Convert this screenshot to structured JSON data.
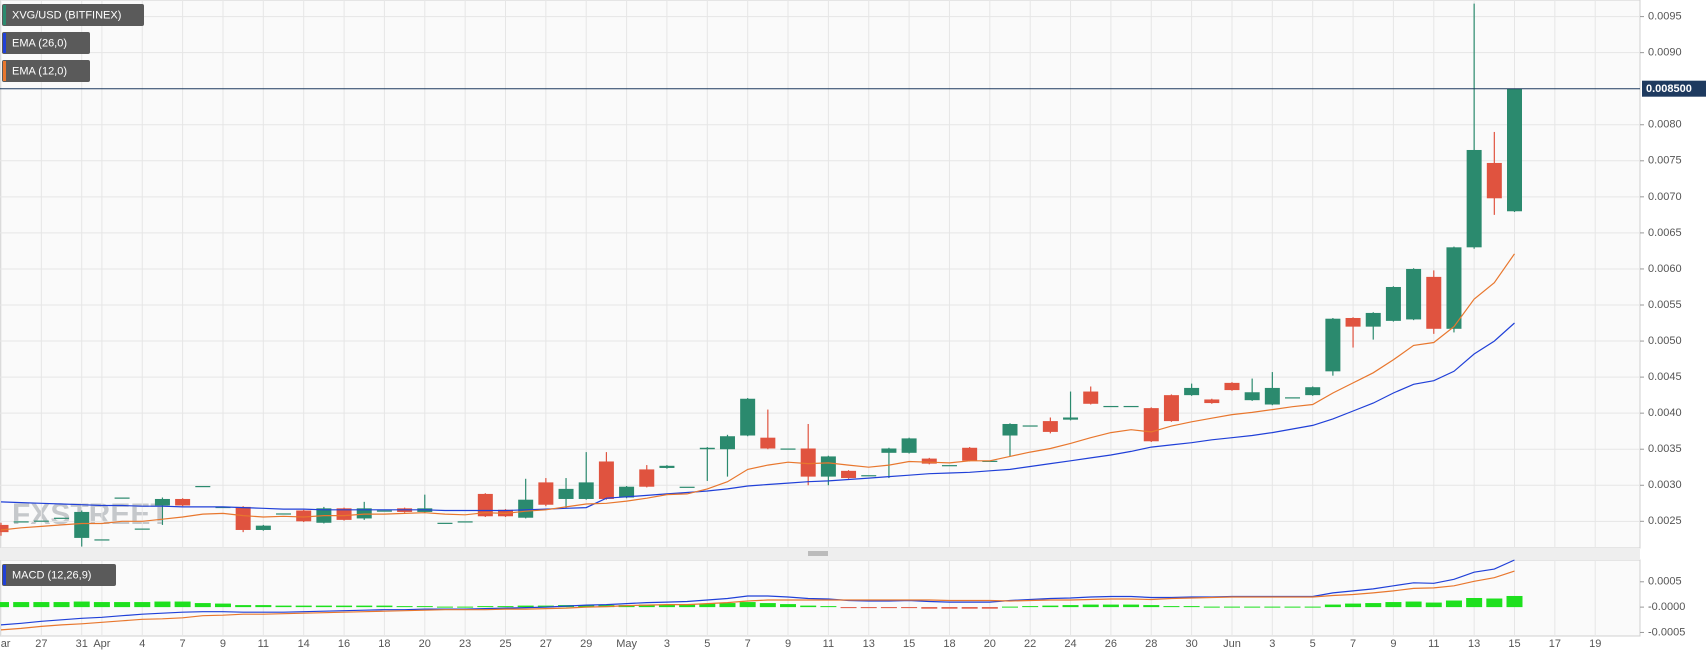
{
  "watermark": "FXSTREET",
  "chart_data": [
    {
      "type": "candlestick",
      "title": "XVG/USD (BITFINEX)",
      "up_color": "#2b8a6e",
      "down_color": "#e0533f",
      "grid": true,
      "categories": [
        "Mar",
        null,
        "27",
        null,
        "31",
        "Apr",
        null,
        "4",
        null,
        "7",
        null,
        "9",
        null,
        "11",
        null,
        "14",
        null,
        "16",
        null,
        "18",
        null,
        "20",
        null,
        "23",
        null,
        "25",
        null,
        "27",
        null,
        "29",
        null,
        "May",
        null,
        "3",
        null,
        "5",
        null,
        "7",
        null,
        "9",
        null,
        "11",
        null,
        "13",
        null,
        "15",
        null,
        "18",
        null,
        "20",
        null,
        "22",
        null,
        "24",
        null,
        "26",
        null,
        "28",
        null,
        "30",
        null,
        "Jun",
        null,
        "3",
        null,
        "5",
        null,
        "7",
        null,
        "9",
        null,
        "11",
        null,
        "13",
        null,
        "15",
        null,
        "17",
        null,
        "19"
      ],
      "open": [
        0.00245,
        0.0025,
        0.00251,
        0.00255,
        0.00227,
        0.00225,
        0.00283,
        0.0024,
        0.00272,
        0.00281,
        0.00299,
        0.0027,
        0.0027,
        0.00238,
        0.00261,
        0.00265,
        0.00248,
        0.00268,
        0.00254,
        0.00265,
        0.00268,
        0.00263,
        0.00248,
        0.0025,
        0.00288,
        0.00266,
        0.00255,
        0.00304,
        0.00281,
        0.00281,
        0.00333,
        0.00283,
        0.00322,
        0.00324,
        0.00298,
        0.0035,
        0.0035,
        0.00369,
        0.00366,
        0.00351,
        0.00351,
        0.00312,
        0.0032,
        0.00314,
        0.00345,
        0.00345,
        0.00337,
        0.00328,
        0.00352,
        0.00334,
        0.00369,
        0.00383,
        0.00389,
        0.00391,
        0.0043,
        0.0041,
        0.0041,
        0.00407,
        0.00425,
        0.00425,
        0.00419,
        0.00442,
        0.00418,
        0.00412,
        0.00422,
        0.00425,
        0.00458,
        0.00532,
        0.0052,
        0.00528,
        0.0053,
        0.00589,
        0.00517,
        0.0063,
        0.00747,
        0.0068,
        null,
        null,
        null,
        null
      ],
      "high": [
        0.00248,
        0.0025,
        0.00251,
        0.00255,
        0.00265,
        0.00225,
        0.00283,
        0.0024,
        0.00283,
        0.00282,
        0.00299,
        0.0027,
        0.00271,
        0.00245,
        0.00261,
        0.00266,
        0.0027,
        0.00269,
        0.00277,
        0.00265,
        0.00269,
        0.00287,
        0.00248,
        0.0025,
        0.00289,
        0.00267,
        0.00309,
        0.0031,
        0.0031,
        0.00346,
        0.00346,
        0.00299,
        0.00328,
        0.00328,
        0.00298,
        0.00353,
        0.0037,
        0.00421,
        0.00405,
        0.00351,
        0.00385,
        0.00341,
        0.00321,
        0.00314,
        0.00352,
        0.00366,
        0.00338,
        0.00328,
        0.00353,
        0.00334,
        0.00386,
        0.00383,
        0.00394,
        0.0043,
        0.00437,
        0.0041,
        0.0041,
        0.00408,
        0.00426,
        0.00441,
        0.0042,
        0.00443,
        0.00448,
        0.00457,
        0.00422,
        0.00437,
        0.00532,
        0.00533,
        0.0054,
        0.00576,
        0.00601,
        0.00598,
        0.00631,
        0.00968,
        0.0079,
        0.0085,
        null,
        null,
        null,
        null
      ],
      "low": [
        0.0023,
        0.0025,
        0.00251,
        0.00255,
        0.00215,
        0.00225,
        0.00283,
        0.0024,
        0.00245,
        0.00271,
        0.00299,
        0.0027,
        0.00235,
        0.00237,
        0.00261,
        0.00249,
        0.00247,
        0.00251,
        0.00252,
        0.00265,
        0.00262,
        0.00262,
        0.00248,
        0.0025,
        0.00256,
        0.00256,
        0.00254,
        0.00271,
        0.00268,
        0.0028,
        0.0028,
        0.00282,
        0.00297,
        0.00323,
        0.00298,
        0.00306,
        0.00312,
        0.00368,
        0.0035,
        0.00351,
        0.003,
        0.003,
        0.00309,
        0.00314,
        0.0031,
        0.00344,
        0.00329,
        0.00328,
        0.00333,
        0.00334,
        0.0034,
        0.00383,
        0.00372,
        0.0039,
        0.00412,
        0.0041,
        0.0041,
        0.0036,
        0.00388,
        0.00424,
        0.00413,
        0.00431,
        0.00417,
        0.00411,
        0.00422,
        0.00424,
        0.00452,
        0.00491,
        0.00502,
        0.00527,
        0.00529,
        0.0051,
        0.00512,
        0.00628,
        0.00675,
        0.00679,
        null,
        null,
        null,
        null
      ],
      "close": [
        0.00235,
        0.0025,
        0.00251,
        0.00255,
        0.00263,
        0.00225,
        0.00283,
        0.0024,
        0.00281,
        0.00272,
        0.00299,
        0.0027,
        0.00238,
        0.00244,
        0.00261,
        0.0025,
        0.00268,
        0.00252,
        0.00268,
        0.00265,
        0.00263,
        0.00268,
        0.00248,
        0.0025,
        0.00257,
        0.00257,
        0.0028,
        0.00273,
        0.00295,
        0.00304,
        0.00281,
        0.00298,
        0.00298,
        0.00327,
        0.00298,
        0.00352,
        0.00368,
        0.0042,
        0.00351,
        0.00351,
        0.00312,
        0.0034,
        0.0031,
        0.00314,
        0.00351,
        0.00365,
        0.0033,
        0.00328,
        0.00334,
        0.00334,
        0.00385,
        0.00383,
        0.00374,
        0.00394,
        0.00413,
        0.0041,
        0.0041,
        0.00361,
        0.00389,
        0.00435,
        0.00414,
        0.00432,
        0.00429,
        0.00435,
        0.00422,
        0.00436,
        0.00531,
        0.0052,
        0.00539,
        0.00575,
        0.006,
        0.00517,
        0.0063,
        0.00765,
        0.00698,
        0.0085,
        null,
        null,
        null,
        null
      ],
      "series": [
        {
          "name": "EMA (26,0)",
          "color": "#2040d8",
          "values": [
            0.00277,
            0.00276,
            0.00275,
            0.00274,
            0.00273,
            0.00272,
            0.00272,
            0.00271,
            0.00271,
            0.0027,
            0.0027,
            0.0027,
            0.00269,
            0.00268,
            0.00267,
            0.00267,
            0.00266,
            0.00266,
            0.00266,
            0.00266,
            0.00266,
            0.00266,
            0.00265,
            0.00265,
            0.00265,
            0.00265,
            0.00266,
            0.00267,
            0.00268,
            0.00269,
            0.00282,
            0.00284,
            0.00286,
            0.00288,
            0.0029,
            0.00292,
            0.00295,
            0.00299,
            0.00301,
            0.00303,
            0.00305,
            0.00306,
            0.00308,
            0.0031,
            0.00312,
            0.00314,
            0.00316,
            0.00317,
            0.00318,
            0.0032,
            0.00322,
            0.00326,
            0.0033,
            0.00334,
            0.00338,
            0.00342,
            0.00347,
            0.00353,
            0.00356,
            0.00359,
            0.00363,
            0.00366,
            0.00369,
            0.00373,
            0.00378,
            0.00383,
            0.00392,
            0.00403,
            0.00414,
            0.00428,
            0.0044,
            0.00445,
            0.00458,
            0.00482,
            0.005,
            0.00525,
            null,
            null,
            null,
            null
          ]
        },
        {
          "name": "EMA (12,0)",
          "color": "#e8772e",
          "values": [
            0.00238,
            0.00241,
            0.00243,
            0.00245,
            0.00247,
            0.00247,
            0.0025,
            0.0025,
            0.00253,
            0.00256,
            0.0026,
            0.00261,
            0.00258,
            0.00256,
            0.00257,
            0.00256,
            0.00258,
            0.00258,
            0.0026,
            0.0026,
            0.00261,
            0.00262,
            0.0026,
            0.00259,
            0.00262,
            0.00261,
            0.00264,
            0.00266,
            0.0027,
            0.00274,
            0.00275,
            0.00278,
            0.00282,
            0.00287,
            0.00288,
            0.00295,
            0.00305,
            0.00322,
            0.00328,
            0.00332,
            0.0033,
            0.00331,
            0.00328,
            0.00325,
            0.00328,
            0.00333,
            0.00332,
            0.00331,
            0.00334,
            0.00334,
            0.0034,
            0.00346,
            0.00351,
            0.00358,
            0.00366,
            0.00373,
            0.00377,
            0.00374,
            0.00382,
            0.00388,
            0.00393,
            0.00398,
            0.00401,
            0.00405,
            0.00409,
            0.00412,
            0.00428,
            0.00442,
            0.00456,
            0.00474,
            0.00494,
            0.00498,
            0.0052,
            0.00558,
            0.00581,
            0.00621,
            null,
            null,
            null,
            null
          ]
        }
      ],
      "ylim": [
        0.00213,
        0.00973
      ],
      "yticks": [
        {
          "value": 0.0025,
          "label": "0.0025"
        },
        {
          "value": 0.003,
          "label": "0.0030"
        },
        {
          "value": 0.0035,
          "label": "0.0035"
        },
        {
          "value": 0.004,
          "label": "0.0040"
        },
        {
          "value": 0.0045,
          "label": "0.0045"
        },
        {
          "value": 0.005,
          "label": "0.0050"
        },
        {
          "value": 0.0055,
          "label": "0.0055"
        },
        {
          "value": 0.006,
          "label": "0.0060"
        },
        {
          "value": 0.0065,
          "label": "0.0065"
        },
        {
          "value": 0.007,
          "label": "0.0070"
        },
        {
          "value": 0.0075,
          "label": "0.0075"
        },
        {
          "value": 0.008,
          "label": "0.0080"
        },
        {
          "value": 0.009,
          "label": "0.0090"
        },
        {
          "value": 0.0095,
          "label": "0.0095"
        }
      ],
      "last_price": {
        "value": 0.0085,
        "label": "0.008500",
        "color": "#1e3a5f"
      }
    },
    {
      "type": "macd",
      "title": "MACD (12,26,9)",
      "histogram": {
        "up_color": "#1ee01e",
        "down_color": "#e0533f",
        "values": [
          0.0001,
          0.0001,
          0.0001,
          0.0001,
          0.00011,
          0.0001,
          0.0001,
          0.0001,
          0.00011,
          0.00011,
          8e-05,
          7e-05,
          4e-05,
          4e-05,
          3e-05,
          3e-05,
          3e-05,
          3e-05,
          3e-05,
          3e-05,
          2e-05,
          2e-05,
          1e-05,
          1e-05,
          2e-05,
          2e-05,
          3e-05,
          3e-05,
          4e-05,
          4e-05,
          4e-05,
          4e-05,
          5e-05,
          5e-05,
          6e-05,
          7e-05,
          8e-05,
          0.0001,
          8e-05,
          6e-05,
          3e-05,
          2e-05,
          -1e-05,
          -2e-05,
          -2e-05,
          -1e-05,
          -3e-05,
          -3e-05,
          -3e-05,
          -3e-05,
          1e-05,
          2e-05,
          3e-05,
          4e-05,
          5e-05,
          5e-05,
          5e-05,
          4e-05,
          2e-05,
          2e-05,
          1e-05,
          1e-05,
          1e-05,
          1e-05,
          1e-05,
          1e-05,
          5e-05,
          7e-05,
          8e-05,
          0.0001,
          0.00011,
          9e-05,
          0.00013,
          0.00018,
          0.00017,
          0.00022,
          null,
          null,
          null,
          null
        ]
      },
      "macd_line": {
        "color": "#2040d8",
        "values": [
          -0.00035,
          -0.00032,
          -0.00028,
          -0.00025,
          -0.00022,
          -0.0002,
          -0.00017,
          -0.00014,
          -0.00012,
          -0.0001,
          -9e-05,
          -9e-05,
          -0.0001,
          -0.0001,
          -0.0001,
          -9e-05,
          -8e-05,
          -7e-05,
          -6e-05,
          -5e-05,
          -5e-05,
          -4e-05,
          -4e-05,
          -4e-05,
          -3e-05,
          -2e-05,
          -1e-05,
          0,
          2e-05,
          4e-05,
          5e-05,
          7e-05,
          9e-05,
          0.0001,
          0.00011,
          0.00014,
          0.00017,
          0.00022,
          0.00022,
          0.0002,
          0.00017,
          0.00016,
          0.00013,
          0.00012,
          0.00012,
          0.00013,
          0.00011,
          0.0001,
          0.0001,
          0.0001,
          0.00013,
          0.00015,
          0.00017,
          0.00018,
          0.0002,
          0.00021,
          0.00021,
          0.00019,
          0.00019,
          0.0002,
          0.0002,
          0.00021,
          0.00021,
          0.00021,
          0.00021,
          0.00021,
          0.00028,
          0.00032,
          0.00036,
          0.00042,
          0.00048,
          0.00047,
          0.00055,
          0.00069,
          0.00075,
          0.00093,
          null,
          null,
          null,
          null
        ]
      },
      "signal_line": {
        "color": "#e8772e",
        "values": [
          -0.00045,
          -0.00042,
          -0.00038,
          -0.00035,
          -0.00033,
          -0.0003,
          -0.00027,
          -0.00024,
          -0.00023,
          -0.00021,
          -0.00017,
          -0.00016,
          -0.00014,
          -0.00014,
          -0.00013,
          -0.00012,
          -0.00011,
          -0.0001,
          -9e-05,
          -8e-05,
          -7e-05,
          -6e-05,
          -5e-05,
          -5e-05,
          -5e-05,
          -4e-05,
          -4e-05,
          -3e-05,
          -2e-05,
          0,
          1e-05,
          3e-05,
          4e-05,
          5e-05,
          5e-05,
          7e-05,
          9e-05,
          0.00012,
          0.00014,
          0.00014,
          0.00014,
          0.00014,
          0.00014,
          0.00014,
          0.00014,
          0.00014,
          0.00014,
          0.00013,
          0.00013,
          0.00013,
          0.00012,
          0.00013,
          0.00014,
          0.00014,
          0.00015,
          0.00016,
          0.00016,
          0.00015,
          0.00017,
          0.00018,
          0.00019,
          0.0002,
          0.0002,
          0.0002,
          0.0002,
          0.0002,
          0.00023,
          0.00025,
          0.00028,
          0.00032,
          0.00037,
          0.00038,
          0.00042,
          0.00051,
          0.00058,
          0.00071,
          null,
          null,
          null,
          null
        ]
      },
      "ylim": [
        -0.00057,
        0.00093
      ],
      "yticks": [
        {
          "value": 0.0005,
          "label": "0.0005"
        },
        {
          "value": 0,
          "label": "-0.0000"
        },
        {
          "value": -0.0005,
          "label": "-0.0005"
        }
      ]
    }
  ]
}
